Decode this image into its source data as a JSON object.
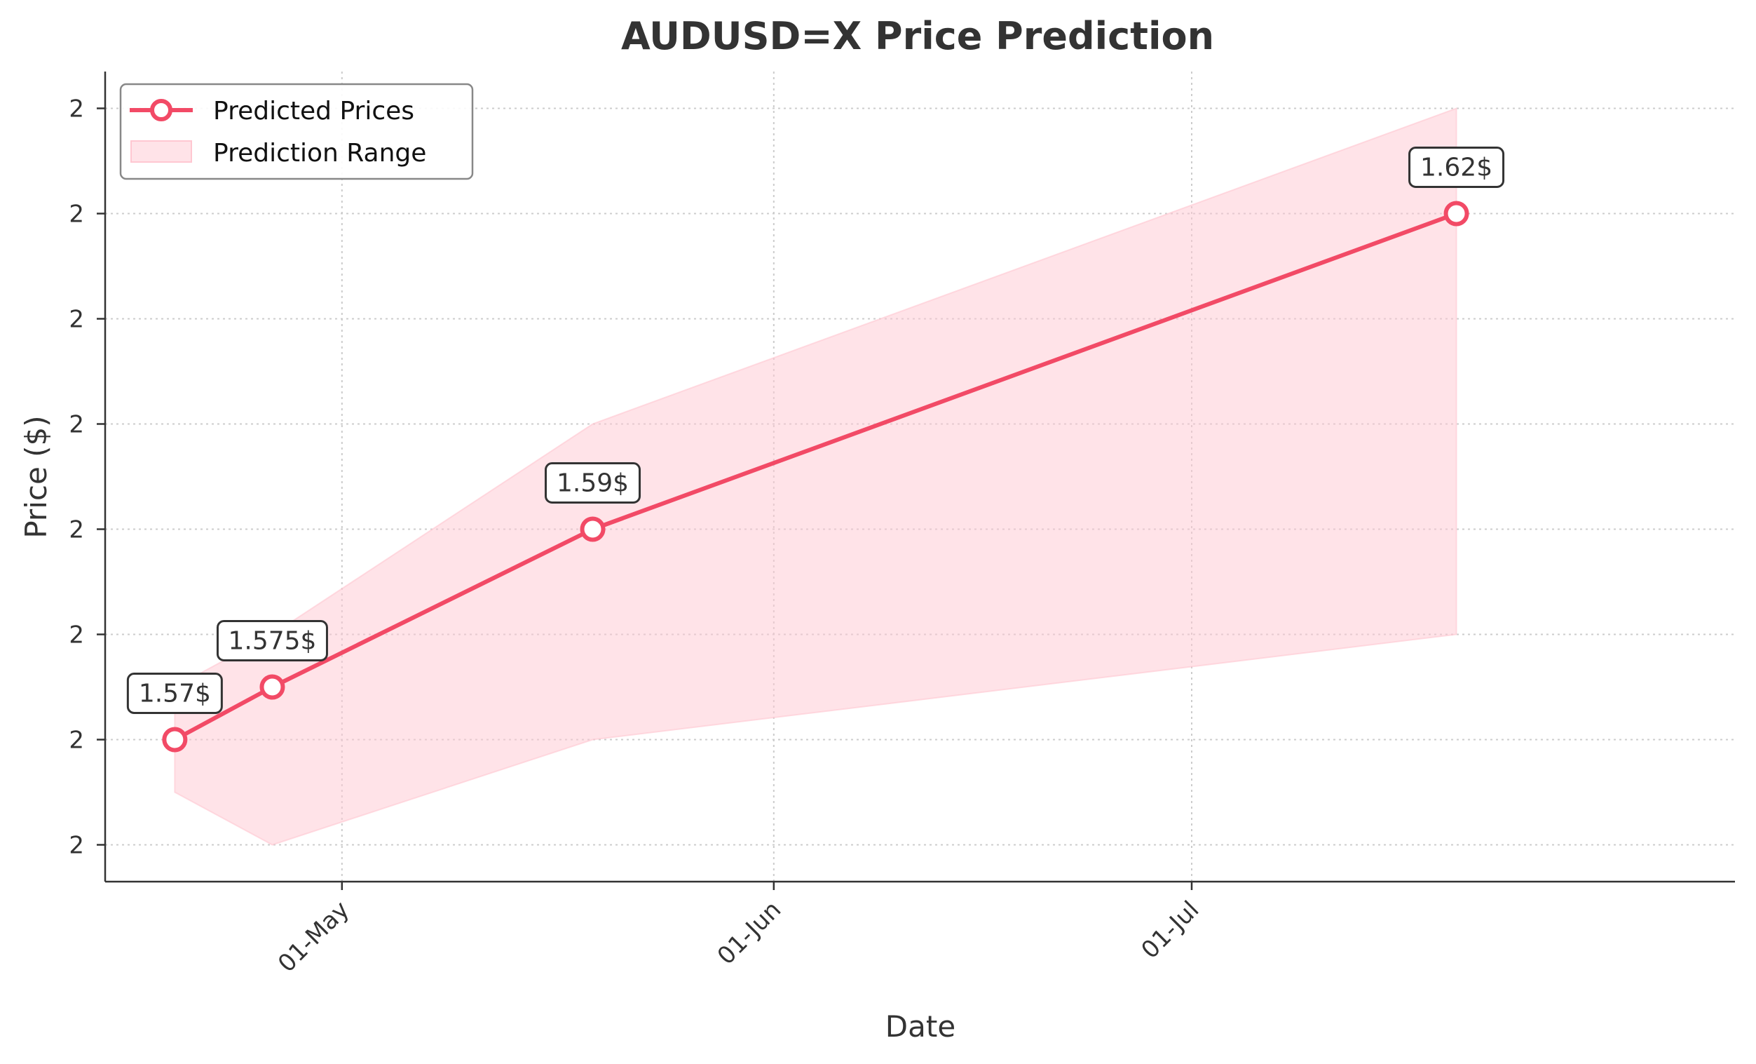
{
  "chart_data": {
    "type": "line",
    "title": "AUDUSD=X Price Prediction",
    "xlabel": "Date",
    "ylabel": "Price ($)",
    "x_ticks": [
      {
        "date": "2024-05-01",
        "label": "01-May"
      },
      {
        "date": "2024-06-01",
        "label": "01-Jun"
      },
      {
        "date": "2024-07-01",
        "label": "01-Jul"
      }
    ],
    "xlim": [
      "2024-04-14",
      "2024-08-09"
    ],
    "y_ticks": [
      {
        "value": 1.56,
        "label": "2"
      },
      {
        "value": 1.57,
        "label": "2"
      },
      {
        "value": 1.58,
        "label": "2"
      },
      {
        "value": 1.59,
        "label": "2"
      },
      {
        "value": 1.6,
        "label": "2"
      },
      {
        "value": 1.61,
        "label": "2"
      },
      {
        "value": 1.62,
        "label": "2"
      },
      {
        "value": 1.63,
        "label": "2"
      }
    ],
    "ylim": [
      1.5565,
      1.6335
    ],
    "grid": true,
    "legend_position": "top-left",
    "series": [
      {
        "name": "Predicted Prices",
        "color": "#f24a66",
        "points": [
          {
            "x": "2024-04-19",
            "y": 1.57,
            "label": "1.57$"
          },
          {
            "x": "2024-04-26",
            "y": 1.575,
            "label": "1.575$"
          },
          {
            "x": "2024-05-19",
            "y": 1.59,
            "label": "1.59$"
          },
          {
            "x": "2024-07-20",
            "y": 1.62,
            "label": "1.62$"
          }
        ]
      }
    ],
    "range": {
      "name": "Prediction Range",
      "color": "#ffc7d1",
      "points": [
        {
          "x": "2024-04-19",
          "low": 1.565,
          "high": 1.575
        },
        {
          "x": "2024-04-26",
          "low": 1.56,
          "high": 1.58
        },
        {
          "x": "2024-05-19",
          "low": 1.57,
          "high": 1.6
        },
        {
          "x": "2024-07-20",
          "low": 1.58,
          "high": 1.63
        }
      ]
    }
  }
}
